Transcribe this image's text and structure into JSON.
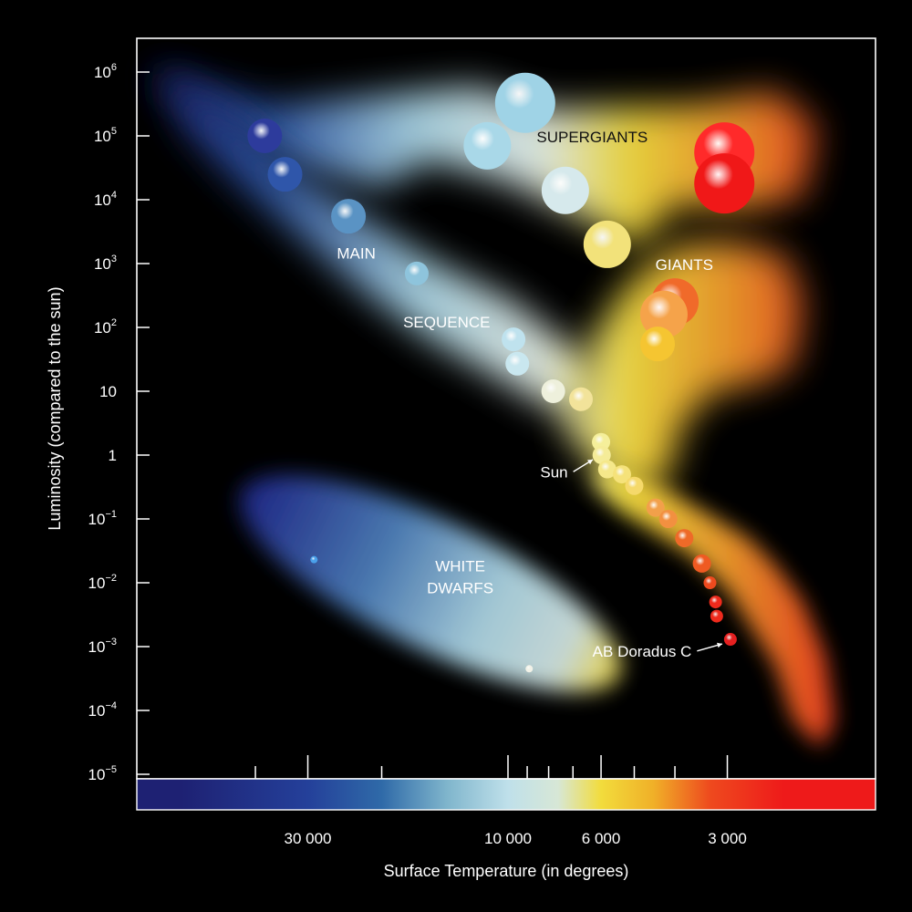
{
  "chart_data": {
    "type": "scatter",
    "title": "",
    "xlabel": "Surface Temperature (in degrees)",
    "ylabel": "Luminosity (compared to the sun)",
    "x_scale": "log",
    "x_reversed": true,
    "y_scale": "log",
    "xlim": [
      60000,
      2200
    ],
    "ylim": [
      1e-05,
      1000000
    ],
    "x_ticks_labeled": [
      {
        "value": 30000,
        "label": "30 000"
      },
      {
        "value": 10000,
        "label": "10 000"
      },
      {
        "value": 6000,
        "label": "6 000"
      },
      {
        "value": 3000,
        "label": "3 000"
      }
    ],
    "x_ticks_minor": [
      40000,
      20000,
      9000,
      8000,
      7000,
      5000,
      4000
    ],
    "y_ticks": [
      {
        "value": 1000000,
        "base": "10",
        "exp": "6"
      },
      {
        "value": 100000,
        "base": "10",
        "exp": "5"
      },
      {
        "value": 10000,
        "base": "10",
        "exp": "4"
      },
      {
        "value": 1000,
        "base": "10",
        "exp": "3"
      },
      {
        "value": 100,
        "base": "10",
        "exp": "2"
      },
      {
        "value": 10,
        "base": "10",
        "exp": ""
      },
      {
        "value": 1,
        "base": "1",
        "exp": ""
      },
      {
        "value": 0.1,
        "base": "10",
        "exp": "−1"
      },
      {
        "value": 0.01,
        "base": "10",
        "exp": "−2"
      },
      {
        "value": 0.001,
        "base": "10",
        "exp": "−3"
      },
      {
        "value": 0.0001,
        "base": "10",
        "exp": "−4"
      },
      {
        "value": 1e-05,
        "base": "10",
        "exp": "−5"
      }
    ],
    "regions": [
      {
        "label": "MAIN",
        "x": 23000,
        "y": 1200
      },
      {
        "label": "SEQUENCE",
        "x": 14000,
        "y": 100
      },
      {
        "label": "SUPERGIANTS",
        "x": 6300,
        "y": 80000,
        "dark": true
      },
      {
        "label": "GIANTS",
        "x": 3800,
        "y": 800
      },
      {
        "label": "WHITE",
        "x": 13000,
        "y": 0.015
      },
      {
        "label": "DWARFS",
        "x": 13000,
        "y": 0.0069
      }
    ],
    "annotations": [
      {
        "label": "Sun",
        "x": 7200,
        "y": 0.45,
        "target_x": 6000,
        "target_y": 1
      },
      {
        "label": "AB Doradus C",
        "x": 3650,
        "y": 0.0007,
        "target_x": 2950,
        "target_y": 0.0013
      }
    ],
    "stars": [
      {
        "x": 38000,
        "y": 100000,
        "size": "m",
        "color": "#2d3b9c"
      },
      {
        "x": 34000,
        "y": 25000,
        "size": "m",
        "color": "#2f56aa"
      },
      {
        "x": 24000,
        "y": 5500,
        "size": "m",
        "color": "#5a93c4"
      },
      {
        "x": 16500,
        "y": 700,
        "size": "s",
        "color": "#8ec4dc"
      },
      {
        "x": 11200,
        "y": 70000,
        "size": "l",
        "color": "#a9d8e8"
      },
      {
        "x": 9100,
        "y": 330000,
        "size": "xl",
        "color": "#9fd3e6"
      },
      {
        "x": 7300,
        "y": 14000,
        "size": "l",
        "color": "#d6e9ec"
      },
      {
        "x": 5800,
        "y": 2000,
        "size": "l",
        "color": "#f2e27a"
      },
      {
        "x": 3050,
        "y": 55000,
        "size": "xl",
        "color": "#ff2a2a"
      },
      {
        "x": 3050,
        "y": 18000,
        "size": "xl",
        "color": "#f01818"
      },
      {
        "x": 4000,
        "y": 250,
        "size": "l",
        "color": "#f06a2a"
      },
      {
        "x": 4250,
        "y": 160,
        "size": "l",
        "color": "#f5a34a"
      },
      {
        "x": 4400,
        "y": 55,
        "size": "m",
        "color": "#f5c531"
      },
      {
        "x": 9700,
        "y": 65,
        "size": "s",
        "color": "#bfe2ee"
      },
      {
        "x": 9500,
        "y": 27,
        "size": "s",
        "color": "#c9e7ef"
      },
      {
        "x": 7800,
        "y": 10,
        "size": "s",
        "color": "#eef0dc"
      },
      {
        "x": 6700,
        "y": 7.5,
        "size": "s",
        "color": "#f2e39a"
      },
      {
        "x": 6000,
        "y": 1.6,
        "size": "xs",
        "color": "#f5ef9a"
      },
      {
        "x": 5980,
        "y": 1.0,
        "size": "xs",
        "color": "#f5ec98"
      },
      {
        "x": 5800,
        "y": 0.6,
        "size": "xs",
        "color": "#f5e88a"
      },
      {
        "x": 5350,
        "y": 0.5,
        "size": "xs",
        "color": "#f5e27a"
      },
      {
        "x": 5000,
        "y": 0.33,
        "size": "xs",
        "color": "#f5d96a"
      },
      {
        "x": 4450,
        "y": 0.15,
        "size": "xs",
        "color": "#f2a04a"
      },
      {
        "x": 4150,
        "y": 0.1,
        "size": "xs",
        "color": "#f29040"
      },
      {
        "x": 3800,
        "y": 0.05,
        "size": "xs",
        "color": "#ee6a28"
      },
      {
        "x": 3450,
        "y": 0.02,
        "size": "xs",
        "color": "#ef5a22"
      },
      {
        "x": 3300,
        "y": 0.01,
        "size": "xxs",
        "color": "#ee4a1e"
      },
      {
        "x": 3200,
        "y": 0.005,
        "size": "xxs",
        "color": "#ef2a1c"
      },
      {
        "x": 3180,
        "y": 0.003,
        "size": "xxs",
        "color": "#ee2a1c"
      },
      {
        "x": 2950,
        "y": 0.0013,
        "size": "xxs",
        "color": "#e62020"
      },
      {
        "x": 29000,
        "y": 0.023,
        "size": "dot",
        "color": "#4aa0ea"
      },
      {
        "x": 8900,
        "y": 0.00045,
        "size": "dot",
        "color": "#f2f2e8"
      }
    ],
    "colorbar": {
      "stops": [
        {
          "x": 60000,
          "color": "#1e2173"
        },
        {
          "x": 30000,
          "color": "#24409a"
        },
        {
          "x": 20000,
          "color": "#2f6aa8"
        },
        {
          "x": 14000,
          "color": "#7fb5cc"
        },
        {
          "x": 10000,
          "color": "#bfe0ea"
        },
        {
          "x": 7600,
          "color": "#d7e7d6"
        },
        {
          "x": 6000,
          "color": "#f2dc3c"
        },
        {
          "x": 4500,
          "color": "#f0b028"
        },
        {
          "x": 3300,
          "color": "#ee4a1e"
        },
        {
          "x": 2200,
          "color": "#ee1a1a"
        }
      ]
    },
    "grid": false,
    "legend": "none",
    "background": "#000000",
    "foreground": "#ffffff"
  }
}
